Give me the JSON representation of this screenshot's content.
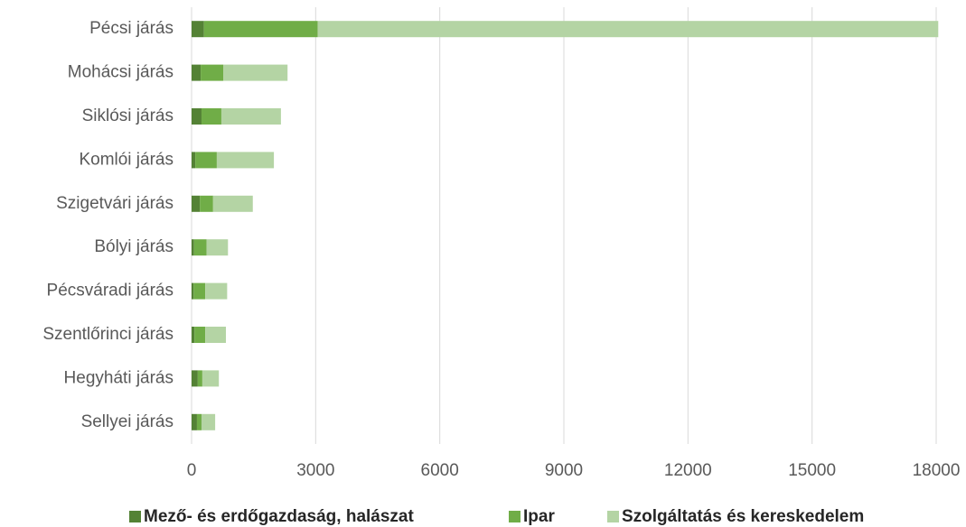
{
  "chart_data": {
    "type": "stacked-barh",
    "categories": [
      "Pécsi járás",
      "Mohácsi járás",
      "Siklósi járás",
      "Komlói járás",
      "Szigetvári járás",
      "Bólyi járás",
      "Pécsváradi járás",
      "Szentlőrinci járás",
      "Hegyháti járás",
      "Sellyei járás"
    ],
    "series": [
      {
        "name": "Mező- és erdőgazdaság, halászat",
        "color": "#548235",
        "values": [
          300,
          220,
          240,
          90,
          200,
          60,
          50,
          70,
          150,
          130
        ]
      },
      {
        "name": "Ipar",
        "color": "#70ad47",
        "values": [
          2750,
          550,
          480,
          520,
          320,
          300,
          280,
          260,
          110,
          110
        ]
      },
      {
        "name": "Szolgáltatás és kereskedelem",
        "color": "#b4d4a4",
        "values": [
          15000,
          1550,
          1440,
          1380,
          960,
          520,
          530,
          500,
          400,
          330
        ]
      }
    ],
    "xlim": [
      0,
      18000
    ],
    "xticks": [
      0,
      3000,
      6000,
      9000,
      12000,
      15000,
      18000
    ],
    "grid": true,
    "legend": "bottom"
  }
}
